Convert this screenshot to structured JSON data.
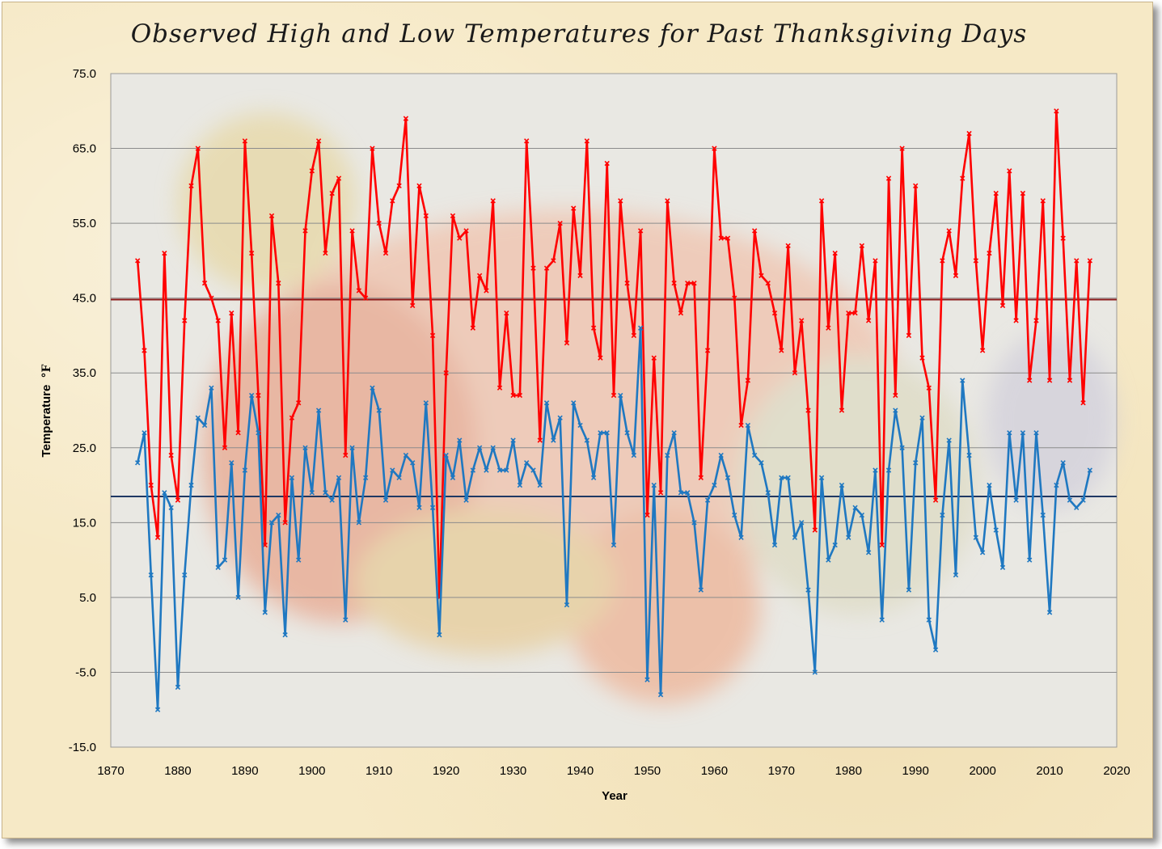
{
  "chart_data": {
    "type": "line",
    "title": "Observed High and Low Temperatures for Past Thanksgiving Days",
    "xlabel": "Year",
    "ylabel": "Temperature",
    "ylabel_unit": "°F",
    "xlim": [
      1870,
      2020
    ],
    "ylim": [
      -15,
      75
    ],
    "x_ticks": [
      "1870",
      "1880",
      "1890",
      "1900",
      "1910",
      "1920",
      "1930",
      "1940",
      "1950",
      "1960",
      "1970",
      "1980",
      "1990",
      "2000",
      "2010",
      "2020"
    ],
    "y_ticks": [
      "75.0",
      "65.0",
      "55.0",
      "45.0",
      "35.0",
      "25.0",
      "15.0",
      "5.0",
      "-5.0",
      "-15.0"
    ],
    "grid": "horizontal",
    "legend": "none",
    "years": [
      1874,
      1875,
      1876,
      1877,
      1878,
      1879,
      1880,
      1881,
      1882,
      1883,
      1884,
      1885,
      1886,
      1887,
      1888,
      1889,
      1890,
      1891,
      1892,
      1893,
      1894,
      1895,
      1896,
      1897,
      1898,
      1899,
      1900,
      1901,
      1902,
      1903,
      1904,
      1905,
      1906,
      1907,
      1908,
      1909,
      1910,
      1911,
      1912,
      1913,
      1914,
      1915,
      1916,
      1917,
      1918,
      1919,
      1920,
      1921,
      1922,
      1923,
      1924,
      1925,
      1926,
      1927,
      1928,
      1929,
      1930,
      1931,
      1932,
      1933,
      1934,
      1935,
      1936,
      1937,
      1938,
      1939,
      1940,
      1941,
      1942,
      1943,
      1944,
      1945,
      1946,
      1947,
      1948,
      1949,
      1950,
      1951,
      1952,
      1953,
      1954,
      1955,
      1956,
      1957,
      1958,
      1959,
      1960,
      1961,
      1962,
      1963,
      1964,
      1965,
      1966,
      1967,
      1968,
      1969,
      1970,
      1971,
      1972,
      1973,
      1974,
      1975,
      1976,
      1977,
      1978,
      1979,
      1980,
      1981,
      1982,
      1983,
      1984,
      1985,
      1986,
      1987,
      1988,
      1989,
      1990,
      1991,
      1992,
      1993,
      1994,
      1995,
      1996,
      1997,
      1998,
      1999,
      2000,
      2001,
      2002,
      2003,
      2004,
      2005,
      2006,
      2007,
      2008,
      2009,
      2010,
      2011,
      2012,
      2013,
      2014,
      2015,
      2016
    ],
    "series": [
      {
        "color": "#ff0000",
        "values": [
          50,
          38,
          20,
          13,
          51,
          24,
          18,
          42,
          60,
          65,
          47,
          45,
          42,
          25,
          43,
          27,
          66,
          51,
          32,
          12,
          56,
          47,
          15,
          29,
          31,
          54,
          62,
          66,
          51,
          59,
          61,
          24,
          54,
          46,
          45,
          65,
          55,
          51,
          58,
          60,
          69,
          44,
          60,
          56,
          40,
          5,
          35,
          56,
          53,
          54,
          41,
          48,
          46,
          58,
          33,
          43,
          32,
          32,
          66,
          49,
          26,
          49,
          50,
          55,
          39,
          57,
          48,
          66,
          41,
          37,
          63,
          32,
          58,
          47,
          40,
          54,
          16,
          37,
          19,
          58,
          47,
          43,
          47,
          47,
          21,
          38,
          65,
          53,
          53,
          45,
          28,
          34,
          54,
          48,
          47,
          43,
          38,
          52,
          35,
          42,
          30,
          14,
          58,
          41,
          51,
          30,
          43,
          43,
          52,
          42,
          50,
          12,
          61,
          32,
          65,
          40,
          60,
          37,
          33,
          18,
          50,
          54,
          48,
          61,
          67,
          50,
          38,
          51,
          59,
          44,
          62,
          42,
          59,
          34,
          42,
          58,
          34,
          70,
          53,
          34,
          50,
          31,
          50
        ]
      },
      {
        "color": "#1f78c1",
        "values": [
          23,
          27,
          8,
          -10,
          19,
          17,
          -7,
          8,
          20,
          29,
          28,
          33,
          9,
          10,
          23,
          5,
          22,
          32,
          27,
          3,
          15,
          16,
          0,
          21,
          10,
          25,
          19,
          30,
          19,
          18,
          21,
          2,
          25,
          15,
          21,
          33,
          30,
          18,
          22,
          21,
          24,
          23,
          17,
          31,
          17,
          0,
          24,
          21,
          26,
          18,
          22,
          25,
          22,
          25,
          22,
          22,
          26,
          20,
          23,
          22,
          20,
          31,
          26,
          29,
          4,
          31,
          28,
          26,
          21,
          27,
          27,
          12,
          32,
          27,
          24,
          41,
          -6,
          20,
          -8,
          24,
          27,
          19,
          19,
          15,
          6,
          18,
          20,
          24,
          21,
          16,
          13,
          28,
          24,
          23,
          19,
          12,
          21,
          21,
          13,
          15,
          6,
          -5,
          21,
          10,
          12,
          20,
          13,
          17,
          16,
          11,
          22,
          2,
          22,
          30,
          25,
          6,
          23,
          29,
          2,
          -2,
          16,
          26,
          8,
          34,
          24,
          13,
          11,
          20,
          14,
          9,
          27,
          18,
          27,
          10,
          27,
          16,
          3,
          20,
          23,
          18,
          17,
          18,
          22
        ]
      }
    ],
    "reference_lines": [
      {
        "value": 44.8,
        "color": "#8b1a1a"
      },
      {
        "value": 18.5,
        "color": "#1f3864"
      }
    ]
  }
}
